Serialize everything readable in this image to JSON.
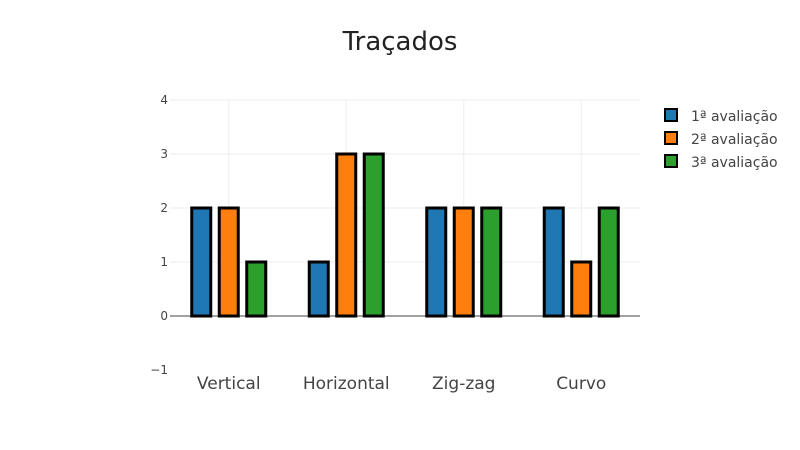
{
  "chart_data": {
    "type": "bar",
    "title": "Traçados",
    "categories": [
      "Vertical",
      "Horizontal",
      "Zig-zag",
      "Curvo"
    ],
    "series": [
      {
        "name": "1ª avaliação",
        "values": [
          2,
          1,
          2,
          2
        ],
        "color": "#1f77b4"
      },
      {
        "name": "2ª avaliação",
        "values": [
          2,
          3,
          2,
          1
        ],
        "color": "#ff7f0e"
      },
      {
        "name": "3ª avaliação",
        "values": [
          1,
          3,
          2,
          2
        ],
        "color": "#2ca02c"
      }
    ],
    "ylim": [
      -1,
      4
    ],
    "yticks": [
      "−1",
      "0",
      "1",
      "2",
      "3",
      "4"
    ],
    "grid": true,
    "legend": "top-right",
    "bar_outline_color": "#000000"
  }
}
